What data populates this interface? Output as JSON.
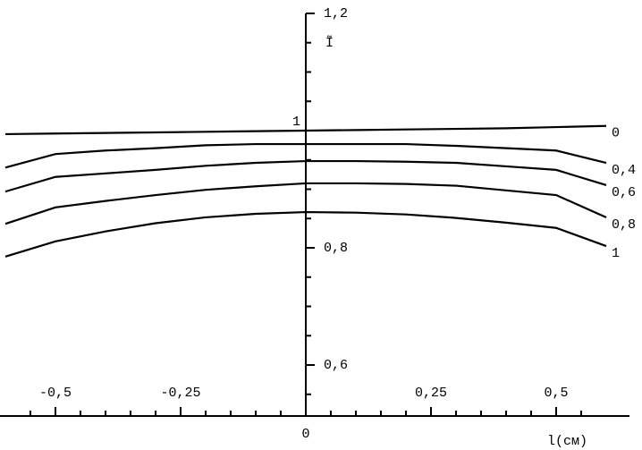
{
  "chart_data": {
    "type": "line",
    "y_label": "Ĩ",
    "x_label": "l(см)",
    "x": [
      -0.6,
      -0.5,
      -0.4,
      -0.3,
      -0.2,
      -0.1,
      0,
      0.1,
      0.2,
      0.3,
      0.4,
      0.5,
      0.6
    ],
    "series": [
      {
        "name": "0",
        "color": "#000000",
        "values": [
          0.994,
          0.995,
          0.996,
          0.997,
          0.998,
          0.999,
          1.0,
          1.001,
          1.002,
          1.003,
          1.004,
          1.006,
          1.008
        ]
      },
      {
        "name": "0,4",
        "color": "#000000",
        "values": [
          0.937,
          0.96,
          0.966,
          0.97,
          0.975,
          0.977,
          0.977,
          0.977,
          0.977,
          0.974,
          0.97,
          0.966,
          0.945
        ]
      },
      {
        "name": "0,6",
        "color": "#000000",
        "values": [
          0.896,
          0.921,
          0.927,
          0.933,
          0.94,
          0.945,
          0.948,
          0.948,
          0.947,
          0.945,
          0.939,
          0.933,
          0.907
        ]
      },
      {
        "name": "0,8",
        "color": "#000000",
        "values": [
          0.841,
          0.869,
          0.88,
          0.89,
          0.899,
          0.905,
          0.91,
          0.91,
          0.909,
          0.906,
          0.898,
          0.89,
          0.852
        ]
      },
      {
        "name": "1",
        "color": "#000000",
        "values": [
          0.785,
          0.811,
          0.828,
          0.842,
          0.852,
          0.858,
          0.861,
          0.86,
          0.857,
          0.851,
          0.843,
          0.834,
          0.803
        ]
      }
    ],
    "xlim": [
      -0.6,
      0.6
    ],
    "ylim": [
      0.513,
      1.2
    ],
    "xticks": [
      {
        "value": -0.5,
        "label": "-0,5"
      },
      {
        "value": -0.25,
        "label": "-0,25"
      },
      0,
      {
        "value": 0.25,
        "label": "0,25"
      },
      {
        "value": 0.5,
        "label": "0,5"
      }
    ],
    "yticks": [
      {
        "value": 1.2,
        "label": "1,2"
      },
      1,
      {
        "value": 0.8,
        "label": "0,8"
      },
      {
        "value": 0.6,
        "label": "0,6"
      }
    ],
    "x_minor_ticks": [
      -0.55,
      -0.45,
      -0.4,
      -0.35,
      -0.3,
      -0.2,
      -0.15,
      -0.1,
      -0.05,
      0.05,
      0.1,
      0.15,
      0.2,
      0.3,
      0.35,
      0.4,
      0.45,
      0.55
    ],
    "y_minor_ticks": [
      0.55,
      0.65,
      0.7,
      0.75,
      0.85,
      0.9,
      0.95,
      1.05,
      1.1,
      1.15
    ],
    "grid": false
  }
}
